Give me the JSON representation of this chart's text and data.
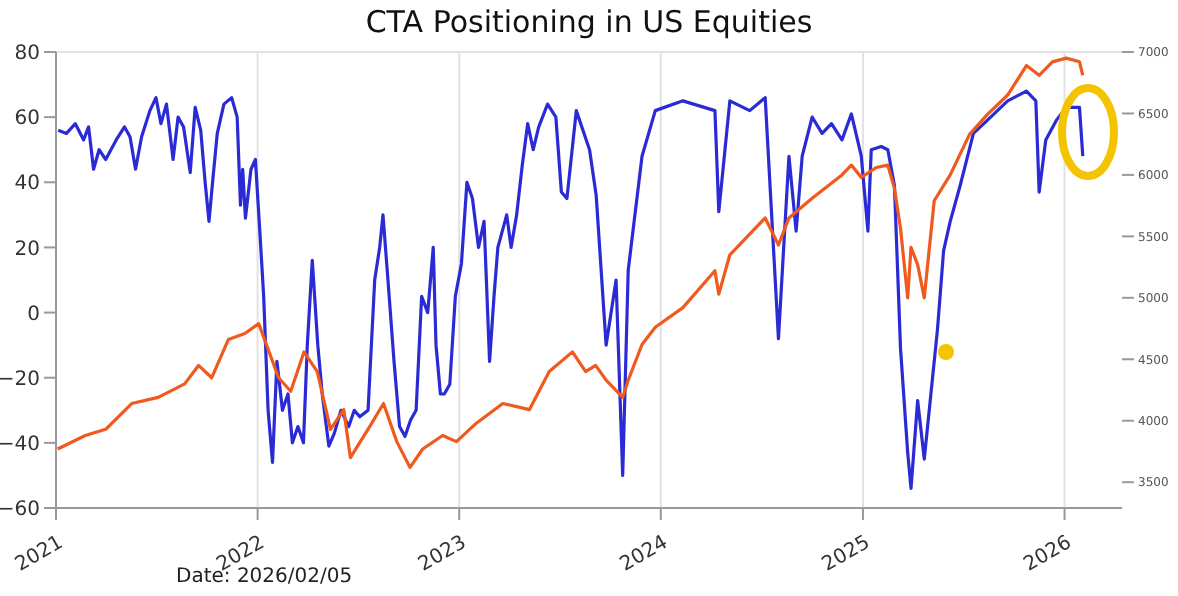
{
  "chart_data": {
    "type": "line",
    "title": "CTA Positioning in US Equities",
    "annotations": [
      "Date: 2026/02/05"
    ],
    "xlim": [
      "2021-01-01",
      "2026-04-15"
    ],
    "xticks": [
      {
        "value": "2021-01-01",
        "label": "2021"
      },
      {
        "value": "2022-01-01",
        "label": "2022"
      },
      {
        "value": "2023-01-01",
        "label": "2023"
      },
      {
        "value": "2024-01-01",
        "label": "2024"
      },
      {
        "value": "2025-01-01",
        "label": "2025"
      },
      {
        "value": "2026-01-01",
        "label": "2026"
      }
    ],
    "ylim": [
      -60,
      80
    ],
    "yticks": [
      -60,
      -40,
      -20,
      0,
      20,
      40,
      60,
      80
    ],
    "y2lim": [
      3290,
      7000
    ],
    "y2ticks": [
      3500,
      4000,
      4500,
      5000,
      5500,
      6000,
      6500,
      7000
    ],
    "grid": true,
    "marker": "none",
    "line_style": "solid",
    "series": [
      {
        "color": "#2b2bd6",
        "x": [
          "2021-01-05",
          "2021-01-20",
          "2021-02-05",
          "2021-02-20",
          "2021-03-01",
          "2021-03-10",
          "2021-03-20",
          "2021-04-01",
          "2021-04-20",
          "2021-05-05",
          "2021-05-15",
          "2021-05-25",
          "2021-06-05",
          "2021-06-20",
          "2021-07-01",
          "2021-07-10",
          "2021-07-20",
          "2021-08-01",
          "2021-08-10",
          "2021-08-20",
          "2021-09-01",
          "2021-09-10",
          "2021-09-20",
          "2021-09-28",
          "2021-10-05",
          "2021-10-12",
          "2021-10-20",
          "2021-11-01",
          "2021-11-15",
          "2021-11-25",
          "2021-12-01",
          "2021-12-05",
          "2021-12-10",
          "2021-12-20",
          "2021-12-28",
          "2022-01-05",
          "2022-01-12",
          "2022-01-20",
          "2022-01-28",
          "2022-02-05",
          "2022-02-15",
          "2022-02-25",
          "2022-03-05",
          "2022-03-15",
          "2022-03-25",
          "2022-04-01",
          "2022-04-10",
          "2022-04-20",
          "2022-04-28",
          "2022-05-10",
          "2022-05-20",
          "2022-06-01",
          "2022-06-15",
          "2022-06-25",
          "2022-07-05",
          "2022-07-20",
          "2022-08-01",
          "2022-08-10",
          "2022-08-16",
          "2022-08-25",
          "2022-09-05",
          "2022-09-15",
          "2022-09-25",
          "2022-10-05",
          "2022-10-15",
          "2022-10-25",
          "2022-11-05",
          "2022-11-15",
          "2022-11-20",
          "2022-11-28",
          "2022-12-05",
          "2022-12-15",
          "2022-12-25",
          "2023-01-05",
          "2023-01-15",
          "2023-01-25",
          "2023-02-05",
          "2023-02-15",
          "2023-02-25",
          "2023-03-05",
          "2023-03-12",
          "2023-03-20",
          "2023-03-28",
          "2023-04-05",
          "2023-04-15",
          "2023-04-25",
          "2023-05-05",
          "2023-05-15",
          "2023-05-25",
          "2023-06-10",
          "2023-06-25",
          "2023-07-05",
          "2023-07-15",
          "2023-08-01",
          "2023-08-25",
          "2023-09-06",
          "2023-09-24",
          "2023-10-12",
          "2023-10-24",
          "2023-11-03",
          "2023-11-28",
          "2023-12-22",
          "2024-02-10",
          "2024-04-08",
          "2024-04-15",
          "2024-05-05",
          "2024-06-10",
          "2024-07-08",
          "2024-08-01",
          "2024-08-20",
          "2024-09-02",
          "2024-09-13",
          "2024-10-01",
          "2024-10-19",
          "2024-11-05",
          "2024-11-24",
          "2024-12-11",
          "2024-12-29",
          "2025-01-10",
          "2025-01-16",
          "2025-02-03",
          "2025-02-15",
          "2025-02-27",
          "2025-03-10",
          "2025-03-23",
          "2025-03-29",
          "2025-04-10",
          "2025-04-22",
          "2025-05-04",
          "2025-05-16",
          "2025-05-27",
          "2025-06-08",
          "2025-06-26",
          "2025-07-20",
          "2025-08-14",
          "2025-09-20",
          "2025-10-24",
          "2025-11-10",
          "2025-11-16",
          "2025-11-28",
          "2025-12-17",
          "2026-01-04",
          "2026-01-28",
          "2026-02-03"
        ],
        "values": [
          56,
          55,
          58,
          53,
          57,
          44,
          50,
          47,
          53,
          57,
          54,
          44,
          54,
          62,
          66,
          58,
          64,
          47,
          60,
          57,
          43,
          63,
          56,
          40,
          28,
          41,
          55,
          64,
          66,
          60,
          33,
          44,
          29,
          44,
          47,
          25,
          5,
          -30,
          -46,
          -15,
          -30,
          -25,
          -40,
          -35,
          -40,
          -10,
          16,
          -10,
          -25,
          -41,
          -37,
          -30,
          -35,
          -30,
          -32,
          -30,
          10,
          20,
          30,
          10,
          -15,
          -35,
          -38,
          -33,
          -30,
          5,
          0,
          20,
          -10,
          -25,
          -25,
          -22,
          5,
          15,
          40,
          35,
          20,
          28,
          -15,
          5,
          20,
          25,
          30,
          20,
          30,
          45,
          58,
          50,
          57,
          64,
          60,
          37,
          35,
          62,
          50,
          36,
          -10,
          10,
          -50,
          13,
          48,
          62,
          65,
          62,
          31,
          65,
          62,
          66,
          -8,
          48,
          25,
          48,
          60,
          55,
          58,
          53,
          61,
          48,
          25,
          50,
          51,
          50,
          39,
          -11,
          -43,
          -54,
          -27,
          -45,
          -25,
          -5,
          19,
          28,
          39,
          55,
          59,
          65,
          68,
          65,
          37,
          53,
          59,
          63,
          63,
          48
        ]
      },
      {
        "color": "#f05a1e",
        "axis": "y2",
        "x": [
          "2021-01-04",
          "2021-02-23",
          "2021-04-01",
          "2021-05-18",
          "2021-07-05",
          "2021-08-22",
          "2021-09-16",
          "2021-10-10",
          "2021-11-09",
          "2021-12-09",
          "2022-01-03",
          "2022-02-08",
          "2022-03-02",
          "2022-03-26",
          "2022-04-19",
          "2022-05-13",
          "2022-06-06",
          "2022-06-18",
          "2022-07-24",
          "2022-08-17",
          "2022-09-10",
          "2022-10-04",
          "2022-10-27",
          "2022-12-02",
          "2022-12-27",
          "2023-02-01",
          "2023-03-21",
          "2023-05-08",
          "2023-06-13",
          "2023-07-25",
          "2023-08-18",
          "2023-09-05",
          "2023-09-24",
          "2023-10-24",
          "2023-11-03",
          "2023-11-28",
          "2023-12-22",
          "2024-02-10",
          "2024-04-08",
          "2024-04-15",
          "2024-05-05",
          "2024-07-08",
          "2024-08-01",
          "2024-08-20",
          "2024-10-01",
          "2024-11-24",
          "2024-12-11",
          "2024-12-29",
          "2025-01-25",
          "2025-02-15",
          "2025-02-27",
          "2025-03-10",
          "2025-03-23",
          "2025-03-29",
          "2025-04-10",
          "2025-04-22",
          "2025-05-10",
          "2025-06-08",
          "2025-07-13",
          "2025-08-14",
          "2025-09-20",
          "2025-10-24",
          "2025-11-16",
          "2025-12-10",
          "2026-01-04",
          "2026-01-28",
          "2026-02-03"
        ],
        "values": [
          3770,
          3880,
          3930,
          4140,
          4190,
          4300,
          4450,
          4350,
          4660,
          4710,
          4790,
          4350,
          4240,
          4560,
          4400,
          3930,
          4090,
          3700,
          3960,
          4140,
          3830,
          3620,
          3770,
          3880,
          3830,
          3980,
          4140,
          4090,
          4400,
          4560,
          4400,
          4450,
          4330,
          4190,
          4330,
          4620,
          4760,
          4920,
          5220,
          5030,
          5350,
          5650,
          5430,
          5650,
          5810,
          6000,
          6080,
          5980,
          6060,
          6080,
          5890,
          5565,
          5000,
          5410,
          5270,
          5000,
          5790,
          6000,
          6330,
          6490,
          6650,
          6890,
          6810,
          6920,
          6950,
          6920,
          6810
        ]
      }
    ]
  }
}
